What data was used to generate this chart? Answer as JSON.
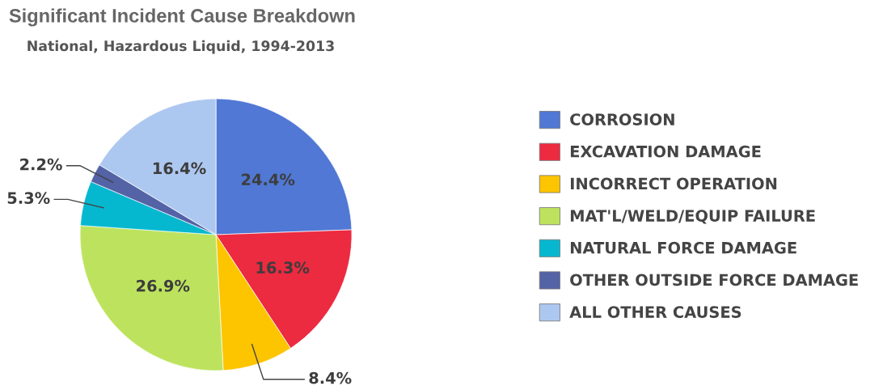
{
  "chart_data": {
    "type": "pie",
    "title": "Significant Incident Cause Breakdown",
    "subtitle": "National, Hazardous Liquid, 1994-2013",
    "categories": [
      "CORROSION",
      "EXCAVATION DAMAGE",
      "INCORRECT OPERATION",
      "MAT'L/WELD/EQUIP FAILURE",
      "NATURAL FORCE DAMAGE",
      "OTHER OUTSIDE FORCE DAMAGE",
      "ALL OTHER CAUSES"
    ],
    "values": [
      24.4,
      16.3,
      8.4,
      26.9,
      5.3,
      2.2,
      16.4
    ],
    "value_labels": [
      "24.4%",
      "16.3%",
      "8.4%",
      "26.9%",
      "5.3%",
      "2.2%",
      "16.4%"
    ],
    "colors": [
      "#5078d4",
      "#ec2a40",
      "#fdc400",
      "#bde35e",
      "#05b8cf",
      "#5462a6",
      "#adc8f0"
    ],
    "legend": "right"
  }
}
